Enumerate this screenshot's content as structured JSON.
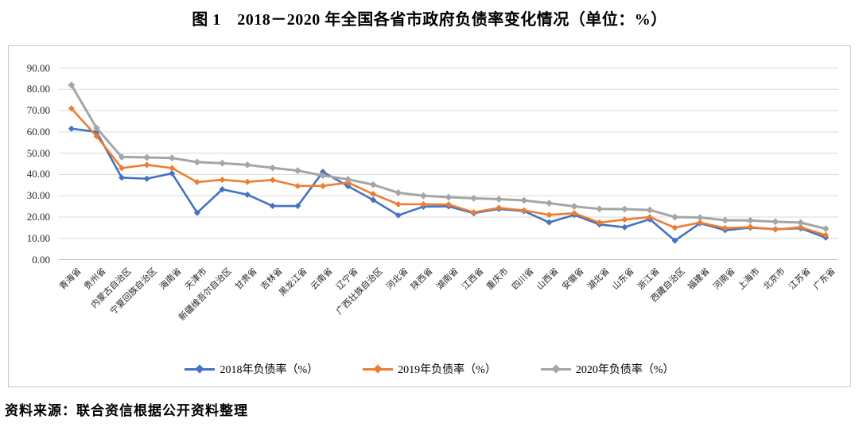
{
  "page": {
    "title": "图 1　2018－2020 年全国各省市政府负债率变化情况（单位：%）",
    "source_note": "资料来源：联合资信根据公开资料整理"
  },
  "chart_data": {
    "type": "line",
    "title": "图 1　2018－2020 年全国各省市政府负债率变化情况（单位：%）",
    "unit": "%",
    "marker": "diamond",
    "grid": true,
    "legend_position": "bottom",
    "ylim": [
      0,
      90
    ],
    "y_tick_step": 10,
    "y_tick_labels": [
      "0.00",
      "10.00",
      "20.00",
      "30.00",
      "40.00",
      "50.00",
      "60.00",
      "70.00",
      "80.00",
      "90.00"
    ],
    "categories": [
      "青海省",
      "贵州省",
      "内蒙古自治区",
      "宁夏回族自治区",
      "海南省",
      "天津市",
      "新疆维吾尔自治区",
      "甘肃省",
      "吉林省",
      "黑龙江省",
      "云南省",
      "辽宁省",
      "广西壮族自治区",
      "河北省",
      "陕西省",
      "湖南省",
      "江西省",
      "重庆市",
      "四川省",
      "山西省",
      "安徽省",
      "湖北省",
      "山东省",
      "浙江省",
      "西藏自治区",
      "福建省",
      "河南省",
      "上海市",
      "北京市",
      "江苏省",
      "广东省"
    ],
    "series": [
      {
        "name": "2018年负债率（%）",
        "color": "#4472C4",
        "values": [
          61.5,
          60.0,
          38.5,
          38.0,
          40.5,
          22.0,
          33.0,
          30.5,
          25.2,
          25.2,
          41.2,
          34.5,
          28.0,
          20.8,
          24.9,
          25.0,
          21.8,
          23.8,
          22.8,
          17.5,
          21.0,
          16.5,
          15.2,
          19.0,
          8.9,
          17.1,
          13.8,
          15.0,
          14.3,
          14.7,
          10.3
        ]
      },
      {
        "name": "2019年负债率（%）",
        "color": "#ED7D31",
        "values": [
          71.0,
          58.0,
          43.0,
          44.5,
          43.0,
          36.4,
          37.5,
          36.5,
          37.4,
          34.6,
          34.6,
          36.2,
          30.8,
          26.0,
          26.0,
          25.9,
          22.2,
          24.3,
          23.1,
          21.0,
          21.8,
          17.4,
          18.8,
          20.0,
          15.0,
          17.4,
          14.8,
          15.3,
          14.1,
          15.2,
          11.5
        ]
      },
      {
        "name": "2020年负债率（%）",
        "color": "#A5A5A5",
        "values": [
          82.0,
          61.8,
          48.2,
          48.0,
          47.7,
          45.8,
          45.3,
          44.5,
          43.1,
          41.8,
          39.5,
          37.7,
          35.2,
          31.4,
          30.0,
          29.3,
          28.8,
          28.4,
          27.8,
          26.5,
          25.0,
          23.8,
          23.7,
          23.3,
          20.0,
          19.8,
          18.5,
          18.4,
          17.8,
          17.4,
          14.5
        ]
      }
    ],
    "colors": {
      "grid_line": "#d9d9d9",
      "axis_line": "#bfbfbf",
      "frame_border": "#c9c9c9"
    }
  }
}
